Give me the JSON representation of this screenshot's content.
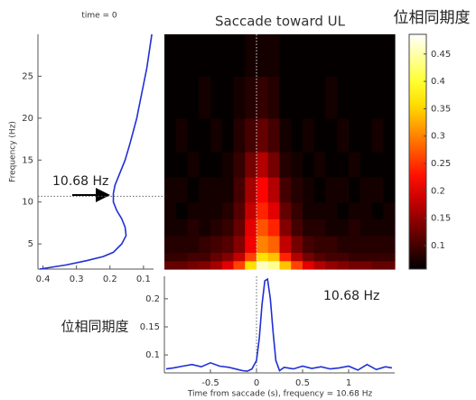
{
  "chart_data": [
    {
      "type": "line",
      "orientation": "vertical",
      "title": "time = 0",
      "ylabel": "Frequency (Hz)",
      "y": [
        2,
        2.5,
        3,
        3.5,
        4,
        5,
        6,
        7,
        8,
        9,
        10,
        11,
        12,
        13,
        15,
        17,
        20,
        23,
        26,
        30
      ],
      "series": [
        {
          "color": "#1f2fd6",
          "values": [
            0.41,
            0.33,
            0.27,
            0.22,
            0.19,
            0.165,
            0.152,
            0.155,
            0.165,
            0.18,
            0.19,
            0.19,
            0.185,
            0.175,
            0.155,
            0.14,
            0.12,
            0.105,
            0.09,
            0.075
          ]
        }
      ],
      "xlim": [
        0.415,
        0.07
      ],
      "xticks": [
        0.4,
        0.3,
        0.2,
        0.1
      ],
      "ylim": [
        2,
        30
      ],
      "yticks": [
        5,
        10,
        15,
        20,
        25
      ],
      "reference_y": 10.68,
      "annotation": "10.68 Hz"
    },
    {
      "type": "heatmap",
      "title": "Saccade toward UL",
      "title_color": "#e02020",
      "colormap": "hot",
      "x_bins": [
        -1,
        -0.875,
        -0.75,
        -0.625,
        -0.5,
        -0.375,
        -0.25,
        -0.125,
        0,
        0.125,
        0.25,
        0.375,
        0.5,
        0.625,
        0.75,
        0.875,
        1,
        1.125,
        1.25,
        1.375,
        1.5
      ],
      "y_bins": [
        2,
        3,
        4,
        6,
        8,
        10,
        13,
        16,
        20,
        25,
        30
      ],
      "z": [
        [
          0.12,
          0.12,
          0.13,
          0.14,
          0.16,
          0.2,
          0.26,
          0.36,
          0.46,
          0.44,
          0.34,
          0.26,
          0.2,
          0.17,
          0.15,
          0.14,
          0.13,
          0.13,
          0.12,
          0.12
        ],
        [
          0.09,
          0.09,
          0.1,
          0.1,
          0.12,
          0.14,
          0.18,
          0.26,
          0.36,
          0.34,
          0.24,
          0.17,
          0.13,
          0.11,
          0.1,
          0.1,
          0.09,
          0.09,
          0.09,
          0.09
        ],
        [
          0.08,
          0.08,
          0.08,
          0.09,
          0.1,
          0.11,
          0.14,
          0.21,
          0.3,
          0.28,
          0.18,
          0.13,
          0.1,
          0.09,
          0.09,
          0.08,
          0.08,
          0.08,
          0.08,
          0.08
        ],
        [
          0.07,
          0.07,
          0.08,
          0.07,
          0.08,
          0.09,
          0.12,
          0.2,
          0.27,
          0.24,
          0.14,
          0.1,
          0.08,
          0.08,
          0.07,
          0.07,
          0.08,
          0.07,
          0.07,
          0.07
        ],
        [
          0.07,
          0.06,
          0.07,
          0.07,
          0.07,
          0.08,
          0.11,
          0.18,
          0.24,
          0.2,
          0.12,
          0.09,
          0.07,
          0.07,
          0.07,
          0.06,
          0.07,
          0.07,
          0.06,
          0.07
        ],
        [
          0.07,
          0.07,
          0.06,
          0.07,
          0.07,
          0.07,
          0.1,
          0.16,
          0.22,
          0.17,
          0.1,
          0.08,
          0.07,
          0.06,
          0.07,
          0.07,
          0.06,
          0.07,
          0.07,
          0.06
        ],
        [
          0.06,
          0.06,
          0.07,
          0.06,
          0.06,
          0.07,
          0.09,
          0.13,
          0.17,
          0.13,
          0.08,
          0.07,
          0.06,
          0.07,
          0.06,
          0.06,
          0.07,
          0.06,
          0.06,
          0.06
        ],
        [
          0.06,
          0.07,
          0.06,
          0.06,
          0.07,
          0.06,
          0.08,
          0.1,
          0.12,
          0.1,
          0.07,
          0.06,
          0.07,
          0.06,
          0.06,
          0.07,
          0.06,
          0.06,
          0.07,
          0.06
        ],
        [
          0.06,
          0.06,
          0.06,
          0.07,
          0.06,
          0.06,
          0.07,
          0.08,
          0.09,
          0.08,
          0.06,
          0.06,
          0.06,
          0.06,
          0.07,
          0.06,
          0.06,
          0.06,
          0.06,
          0.06
        ],
        [
          0.06,
          0.06,
          0.06,
          0.06,
          0.06,
          0.06,
          0.06,
          0.07,
          0.07,
          0.07,
          0.06,
          0.06,
          0.06,
          0.06,
          0.06,
          0.06,
          0.06,
          0.06,
          0.06,
          0.06
        ]
      ],
      "clim": [
        0.057,
        0.486
      ],
      "cticks": [
        0.1,
        0.15,
        0.2,
        0.25,
        0.3,
        0.35,
        0.4,
        0.45
      ],
      "colorbar_title": "位相同期度",
      "xlim": [
        -1,
        1.5
      ],
      "reference_x": 0
    },
    {
      "type": "line",
      "xlabel": "Time from saccade (s), frequency = 10.68 Hz",
      "ylabel": "位相同期度",
      "x": [
        -0.98,
        -0.9,
        -0.8,
        -0.7,
        -0.6,
        -0.5,
        -0.4,
        -0.3,
        -0.2,
        -0.15,
        -0.1,
        -0.05,
        0,
        0.03,
        0.06,
        0.09,
        0.12,
        0.15,
        0.18,
        0.21,
        0.25,
        0.3,
        0.4,
        0.5,
        0.6,
        0.7,
        0.8,
        0.9,
        1.0,
        1.1,
        1.2,
        1.3,
        1.4,
        1.47
      ],
      "series": [
        {
          "color": "#1f2fd6",
          "values": [
            0.075,
            0.077,
            0.08,
            0.083,
            0.079,
            0.086,
            0.08,
            0.078,
            0.074,
            0.072,
            0.071,
            0.075,
            0.09,
            0.13,
            0.19,
            0.232,
            0.235,
            0.2,
            0.14,
            0.09,
            0.072,
            0.078,
            0.075,
            0.08,
            0.076,
            0.079,
            0.075,
            0.077,
            0.08,
            0.073,
            0.083,
            0.074,
            0.079,
            0.077
          ]
        }
      ],
      "xlim": [
        -1,
        1.5
      ],
      "xticks": [
        -0.5,
        0,
        0.5,
        1
      ],
      "ylim": [
        0.068,
        0.24
      ],
      "yticks": [
        0.1,
        0.15,
        0.2
      ],
      "reference_x": 0,
      "annotation": "10.68 Hz"
    }
  ]
}
